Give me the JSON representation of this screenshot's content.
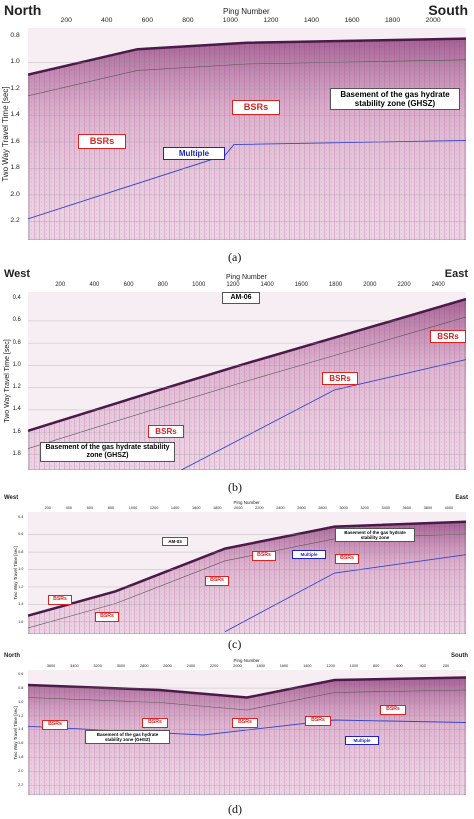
{
  "panels": [
    {
      "left_label": "North",
      "right_label": "South",
      "x_axis_label": "Ping Number",
      "x_ticks": [
        "200",
        "400",
        "600",
        "800",
        "1000",
        "1200",
        "1400",
        "1600",
        "1800",
        "2000"
      ],
      "y_axis_label": "Two Way Travel Time [sec]",
      "y_ticks": [
        "0.8",
        "1.0",
        "1.2",
        "1.4",
        "1.6",
        "1.8",
        "2.0",
        "2.2"
      ],
      "annotations": [
        "BSRs",
        "BSRs",
        "Multiple",
        "Basement of the gas hydrate stability zone (GHSZ)"
      ],
      "caption": "(a)"
    },
    {
      "left_label": "West",
      "right_label": "East",
      "x_axis_label": "Ping Number",
      "x_ticks": [
        "200",
        "400",
        "600",
        "800",
        "1000",
        "1200",
        "1400",
        "1600",
        "1800",
        "2000",
        "2200",
        "2400"
      ],
      "y_axis_label": "Two Way Travel Time [sec]",
      "y_ticks": [
        "0.4",
        "0.6",
        "0.8",
        "1.0",
        "1.2",
        "1.4",
        "1.6",
        "1.8"
      ],
      "annotations": [
        "AM-06",
        "BSRs",
        "BSRs",
        "BSRs",
        "Basement of the gas hydrate stability zone (GHSZ)"
      ],
      "caption": "(b)"
    },
    {
      "left_label": "West",
      "right_label": "East",
      "x_axis_label": "Ping Number",
      "x_ticks": [
        "200",
        "400",
        "600",
        "800",
        "1000",
        "1200",
        "1400",
        "1600",
        "1800",
        "2000",
        "2200",
        "2400",
        "2600",
        "2800",
        "3000",
        "3200",
        "3400",
        "3600",
        "3800",
        "4000"
      ],
      "y_axis_label": "Two Way Travel Time [sec]",
      "y_ticks": [
        "0.4",
        "0.6",
        "0.8",
        "1.0",
        "1.2",
        "1.4",
        "1.6"
      ],
      "annotations": [
        "AM-03",
        "BSRs",
        "BSRs",
        "BSRs",
        "BSRs",
        "BSRs",
        "Multiple",
        "Basement of the gas hydrate stability zone"
      ],
      "caption": "(c)"
    },
    {
      "left_label": "North",
      "right_label": "South",
      "x_axis_label": "Ping Number",
      "x_ticks": [
        "3600",
        "3400",
        "3200",
        "3000",
        "2800",
        "2600",
        "2400",
        "2200",
        "2000",
        "1800",
        "1600",
        "1400",
        "1200",
        "1000",
        "800",
        "600",
        "400",
        "200"
      ],
      "y_axis_label": "Two Way Travel Time [sec]",
      "y_ticks": [
        "0.6",
        "0.8",
        "1.0",
        "1.2",
        "1.4",
        "1.6",
        "1.8",
        "2.0",
        "2.2"
      ],
      "annotations": [
        "BSRs",
        "BSRs",
        "Basement of the gas hydrate stability zone (GHSZ)",
        "BSRs",
        "BSRs",
        "BSRs",
        "Multiple"
      ],
      "caption": "(d)"
    }
  ]
}
